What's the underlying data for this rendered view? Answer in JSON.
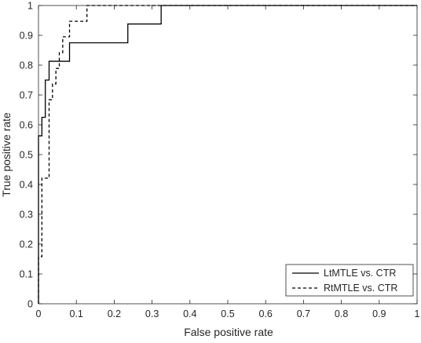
{
  "chart_data": {
    "type": "line",
    "xlabel": "False positive rate",
    "ylabel": "True positive rate",
    "xlim": [
      0,
      1
    ],
    "ylim": [
      0,
      1
    ],
    "xticks": [
      "0",
      "0.1",
      "0.2",
      "0.3",
      "0.4",
      "0.5",
      "0.6",
      "0.7",
      "0.8",
      "0.9",
      "1"
    ],
    "yticks": [
      "0",
      "0.1",
      "0.2",
      "0.3",
      "0.4",
      "0.5",
      "0.6",
      "0.7",
      "0.8",
      "0.9",
      "1"
    ],
    "grid": false,
    "legend_position": "bottom-right",
    "series": [
      {
        "name": "LtMTLE vs. CTR",
        "style": "solid",
        "color": "#000000",
        "x": [
          0,
          0,
          0.009,
          0.009,
          0.018,
          0.018,
          0.028,
          0.028,
          0.046,
          0.046,
          0.064,
          0.064,
          0.082,
          0.082,
          0.236,
          0.236,
          0.324,
          0.324,
          1
        ],
        "y": [
          0,
          0.563,
          0.563,
          0.625,
          0.625,
          0.75,
          0.75,
          0.813,
          0.813,
          0.813,
          0.813,
          0.813,
          0.813,
          0.875,
          0.875,
          0.938,
          0.938,
          1,
          1
        ]
      },
      {
        "name": "RtMTLE vs. CTR",
        "style": "dashed",
        "color": "#000000",
        "x": [
          0,
          0,
          0.009,
          0.009,
          0.028,
          0.028,
          0.037,
          0.037,
          0.046,
          0.046,
          0.055,
          0.055,
          0.064,
          0.064,
          0.073,
          0.073,
          0.082,
          0.082,
          0.128,
          0.128,
          1
        ],
        "y": [
          0,
          0.158,
          0.158,
          0.421,
          0.421,
          0.684,
          0.684,
          0.737,
          0.737,
          0.789,
          0.789,
          0.842,
          0.842,
          0.895,
          0.895,
          0.895,
          0.895,
          0.947,
          0.947,
          1,
          1
        ]
      }
    ]
  }
}
